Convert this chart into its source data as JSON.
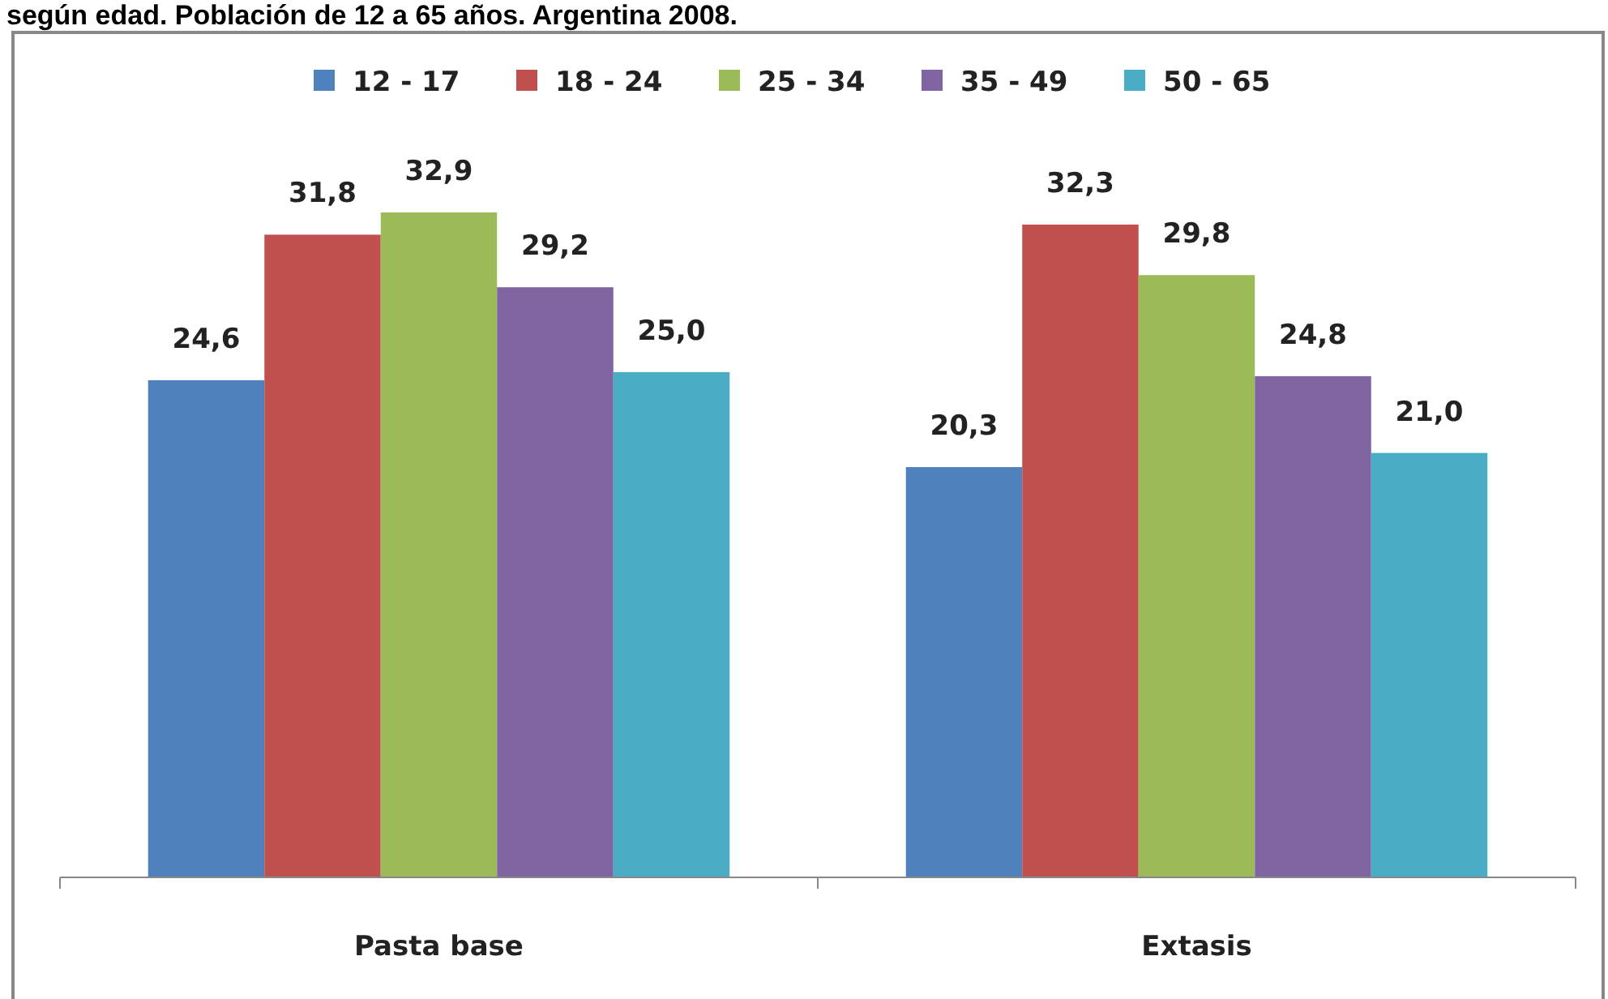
{
  "chart_data": {
    "type": "bar",
    "title": "según edad. Población de 12 a 65 años. Argentina 2008.",
    "categories": [
      "Pasta base",
      "Extasis"
    ],
    "series": [
      {
        "name": "12 - 17",
        "color": "#4f81bd",
        "values": [
          24.6,
          20.3
        ],
        "value_labels": [
          "24,6",
          "20,3"
        ]
      },
      {
        "name": "18 - 24",
        "color": "#c0504d",
        "values": [
          31.8,
          32.3
        ],
        "value_labels": [
          "31,8",
          "32,3"
        ]
      },
      {
        "name": "25 - 34",
        "color": "#9bbb59",
        "values": [
          32.9,
          29.8
        ],
        "value_labels": [
          "32,9",
          "29,8"
        ]
      },
      {
        "name": "35 - 49",
        "color": "#8064a2",
        "values": [
          29.2,
          24.8
        ],
        "value_labels": [
          "29,2",
          "24,8"
        ]
      },
      {
        "name": "50 - 65",
        "color": "#4bacc6",
        "values": [
          25.0,
          21.0
        ],
        "value_labels": [
          "25,0",
          "21,0"
        ]
      }
    ],
    "legend": "top"
  }
}
